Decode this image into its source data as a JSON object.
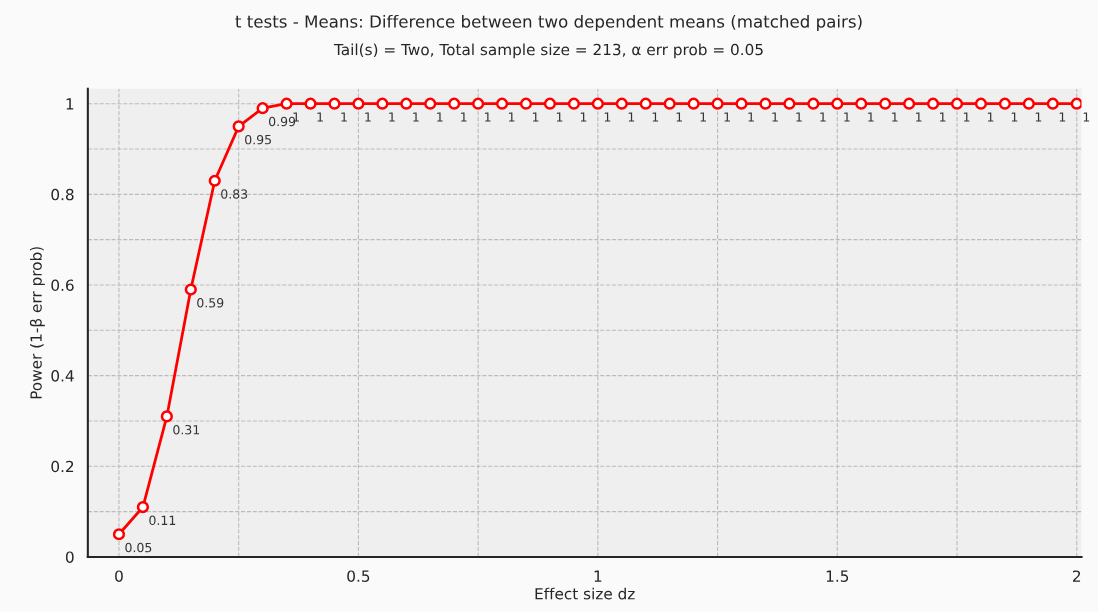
{
  "chart_data": {
    "type": "line",
    "title": "t tests - Means: Difference between two dependent means (matched pairs)",
    "subtitle": "Tail(s) = Two, Total sample size = 213, α err prob = 0.05",
    "xlabel": "Effect size dz",
    "ylabel": "Power (1-β err prob)",
    "x": [
      0,
      0.05,
      0.1,
      0.15,
      0.2,
      0.25,
      0.3,
      0.35,
      0.4,
      0.45,
      0.5,
      0.55,
      0.6,
      0.65,
      0.7,
      0.75,
      0.8,
      0.85,
      0.9,
      0.95,
      1,
      1.05,
      1.1,
      1.15,
      1.2,
      1.25,
      1.3,
      1.35,
      1.4,
      1.45,
      1.5,
      1.55,
      1.6,
      1.65,
      1.7,
      1.75,
      1.8,
      1.85,
      1.9,
      1.95,
      2
    ],
    "series": [
      {
        "color": "#ff0000",
        "values": [
          0.05,
          0.11,
          0.31,
          0.59,
          0.83,
          0.95,
          0.99,
          1,
          1,
          1,
          1,
          1,
          1,
          1,
          1,
          1,
          1,
          1,
          1,
          1,
          1,
          1,
          1,
          1,
          1,
          1,
          1,
          1,
          1,
          1,
          1,
          1,
          1,
          1,
          1,
          1,
          1,
          1,
          1,
          1,
          1
        ]
      }
    ],
    "data_labels": true,
    "marker": "circle",
    "line_style": "solid",
    "grid": true,
    "legend": false,
    "xlim": [
      -0.065,
      2.01
    ],
    "ylim": [
      0,
      1.033
    ],
    "xticks": [
      0,
      {
        "value": 0.25,
        "label": null
      },
      0.5,
      {
        "value": 0.75,
        "label": null
      },
      1,
      {
        "value": 1.25,
        "label": null
      },
      1.5,
      {
        "value": 1.75,
        "label": null
      },
      2
    ],
    "yticks": [
      0,
      {
        "value": 0.1,
        "label": null
      },
      0.2,
      {
        "value": 0.3,
        "label": null
      },
      0.4,
      {
        "value": 0.5,
        "label": null
      },
      0.6,
      {
        "value": 0.7,
        "label": null
      },
      0.8,
      {
        "value": 0.9,
        "label": null
      },
      1
    ]
  }
}
